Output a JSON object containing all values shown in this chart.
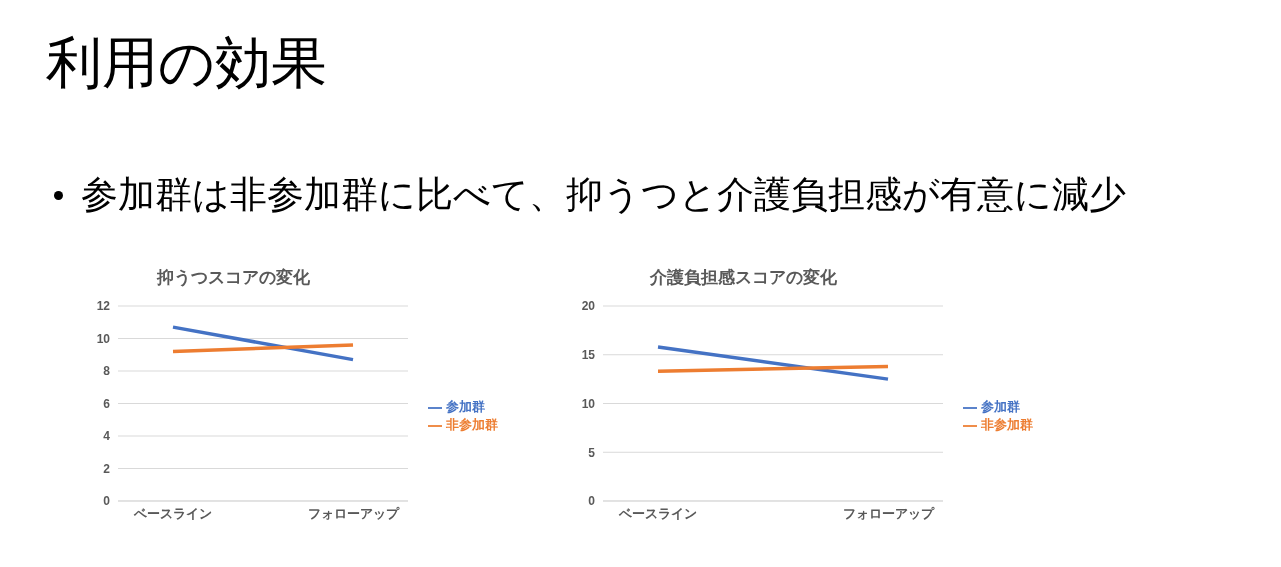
{
  "chart_data": [
    {
      "type": "other",
      "title": "利用の効果",
      "annotations": [
        "参加群は非参加群に比べて、抑うつと介護負担感が有意に減少"
      ]
    },
    {
      "type": "line",
      "title": "抑うつスコアの変化",
      "categories": [
        "ベースライン",
        "フォローアップ"
      ],
      "ylim": [
        0,
        12
      ],
      "yticks": [
        0,
        2,
        4,
        6,
        8,
        10,
        12
      ],
      "grid": "y",
      "legend": "right",
      "series": [
        {
          "name": "参加群",
          "color": "#4472c4",
          "values": [
            10.7,
            8.7
          ]
        },
        {
          "name": "非参加群",
          "color": "#ed7d31",
          "values": [
            9.2,
            9.6
          ]
        }
      ]
    },
    {
      "type": "line",
      "title": "介護負担感スコアの変化",
      "categories": [
        "ベースライン",
        "フォローアップ"
      ],
      "ylim": [
        0,
        20
      ],
      "yticks": [
        0,
        5,
        10,
        15,
        20
      ],
      "grid": "y",
      "legend": "right",
      "series": [
        {
          "name": "参加群",
          "color": "#4472c4",
          "values": [
            15.8,
            12.5
          ]
        },
        {
          "name": "非参加群",
          "color": "#ed7d31",
          "values": [
            13.3,
            13.8
          ]
        }
      ]
    }
  ]
}
